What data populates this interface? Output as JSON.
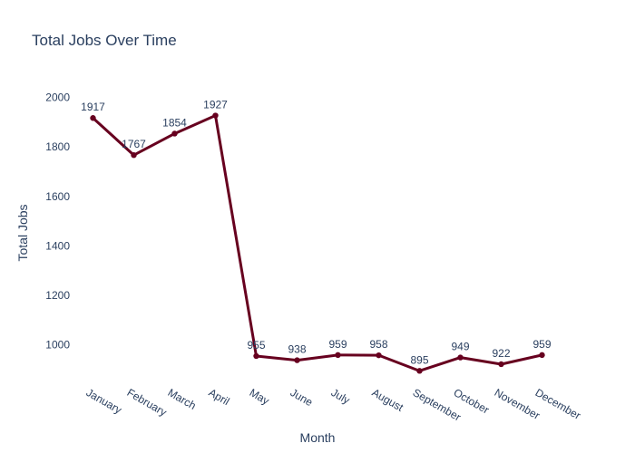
{
  "chart_data": {
    "type": "line",
    "title": "Total Jobs Over Time",
    "xlabel": "Month",
    "ylabel": "Total Jobs",
    "categories": [
      "January",
      "February",
      "March",
      "April",
      "May",
      "June",
      "July",
      "August",
      "September",
      "October",
      "November",
      "December"
    ],
    "series": [
      {
        "values": [
          1917,
          1767,
          1854,
          1927,
          955,
          938,
          959,
          958,
          895,
          949,
          922,
          959
        ],
        "color": "#67001f"
      }
    ],
    "data_labels": [
      "1917",
      "1767",
      "1854",
      "1927",
      "955",
      "938",
      "959",
      "958",
      "895",
      "949",
      "922",
      "959"
    ],
    "ylim": [
      856,
      2101
    ],
    "yticks": [
      1000,
      1200,
      1400,
      1600,
      1800,
      2000
    ],
    "ytick_labels": [
      "1000",
      "1200",
      "1400",
      "1600",
      "1800",
      "2000"
    ],
    "grid": false,
    "legend": "none",
    "text_color": "#2a3f5f",
    "background": "#ffffff"
  }
}
